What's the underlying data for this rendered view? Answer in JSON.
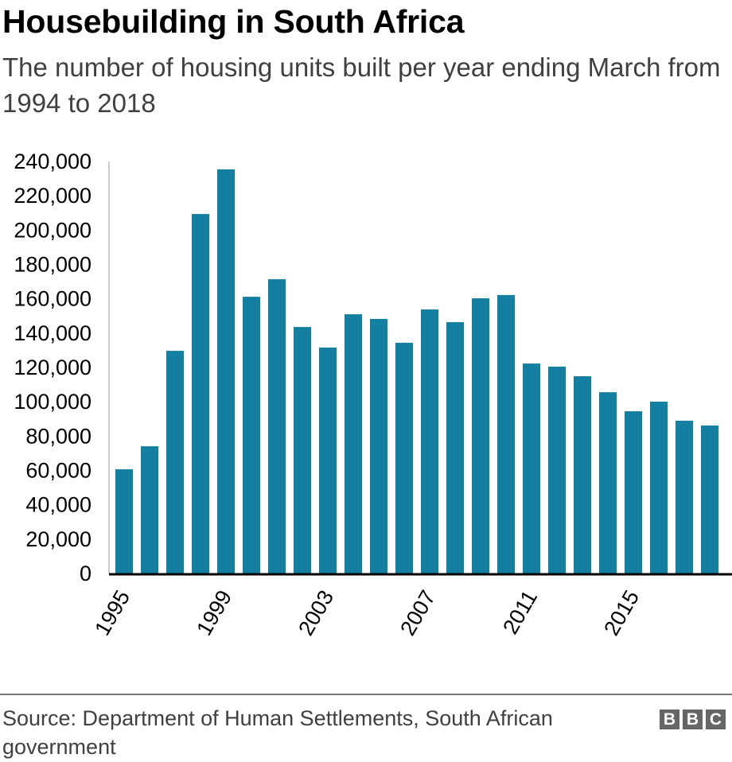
{
  "header": {
    "title": "Housebuilding in South Africa",
    "subtitle": "The number of housing units built per year ending March from 1994 to 2018"
  },
  "footer": {
    "source": "Source: Department of Human Settlements, South African government",
    "logo_letters": [
      "B",
      "B",
      "C"
    ]
  },
  "colors": {
    "bar": "#1380A1",
    "axis": "#000000",
    "yaxis_line": "#cccccc"
  },
  "chart_data": {
    "type": "bar",
    "title": "Housebuilding in South Africa",
    "subtitle": "The number of housing units built per year ending March from 1994 to 2018",
    "xlabel": "",
    "ylabel": "",
    "categories": [
      "1995",
      "1996",
      "1997",
      "1998",
      "1999",
      "2000",
      "2001",
      "2002",
      "2003",
      "2004",
      "2005",
      "2006",
      "2007",
      "2008",
      "2009",
      "2010",
      "2011",
      "2012",
      "2013",
      "2014",
      "2015",
      "2016",
      "2017",
      "2018"
    ],
    "values": [
      60700,
      74100,
      129700,
      209400,
      235400,
      161200,
      171400,
      143600,
      131600,
      151000,
      148300,
      134400,
      153800,
      146400,
      160300,
      162200,
      122300,
      120500,
      114900,
      105600,
      94500,
      100100,
      89000,
      86200
    ],
    "x_tick_labels": [
      "1995",
      "1999",
      "2003",
      "2007",
      "2011",
      "2015"
    ],
    "y_ticks": [
      0,
      20000,
      40000,
      60000,
      80000,
      100000,
      120000,
      140000,
      160000,
      180000,
      200000,
      220000,
      240000
    ],
    "y_tick_labels": [
      "0",
      "20,000",
      "40,000",
      "60,000",
      "80,000",
      "100,000",
      "120,000",
      "140,000",
      "160,000",
      "180,000",
      "200,000",
      "220,000",
      "240,000"
    ],
    "ylim": [
      0,
      240000
    ],
    "grid": false,
    "legend": "none",
    "source": "Department of Human Settlements, South African government"
  }
}
